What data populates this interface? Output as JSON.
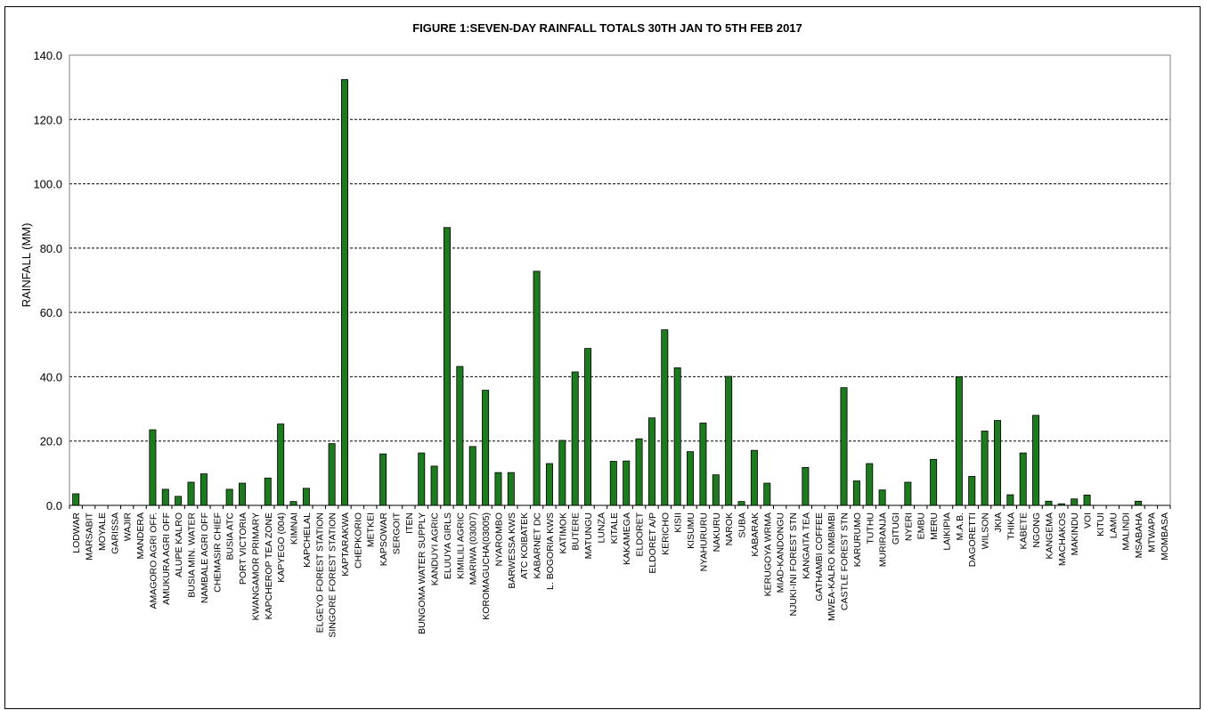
{
  "chart_data": {
    "type": "bar",
    "title": "FIGURE  1:SEVEN-DAY RAINFALL TOTALS 30TH JAN TO 5TH FEB 2017",
    "xlabel": "",
    "ylabel": "RAINFALL (MM)",
    "ylim": [
      0,
      140
    ],
    "yticks": [
      "0.0",
      "20.0",
      "40.0",
      "60.0",
      "80.0",
      "100.0",
      "120.0",
      "140.0"
    ],
    "grid": true,
    "legend": "none",
    "colors": {
      "bar": "#1e7a1e",
      "bar_edge": "#000000",
      "grid": "#000000",
      "axis": "#808080"
    },
    "categories": [
      "LODWAR",
      "MARSABIT",
      "MOYALE",
      "GARISSA",
      "WAJIR",
      "MANDERA",
      "AMAGORO AGRI OFF.",
      "AMUKURA AGRI OFF",
      "ALUPE KALRO",
      "BUSIA MIN. WATER",
      "NAMBALE AGRI OFF",
      "CHEMASIR CHIEF",
      "BUSIA ATC",
      "PORT VICTORIA",
      "KWANGAMOR PRIMARY",
      "KAPCHEROP TEA ZONE",
      "KAPYEGO (004)",
      "KIMNAI",
      "KAPCHELAL",
      "ELGEYO FOREST STATION",
      "SINGORE FOREST STATION",
      "KAPTARAKWA",
      "CHEPKORIO",
      "METKEI",
      "KAPSOWAR",
      "SERGOIT",
      "ITEN",
      "BUNGOMA WATER SUPPLY",
      "KANDUYI AGRIC",
      "ELUUYA GIRLS",
      "KIMILILI AGRIC",
      "MARIWA (03007)",
      "KOROMAGUCHA(03005)",
      "NYAROMBO",
      "BARWESSA KWS",
      "ATC KOIBATEK",
      "KABARNET DC",
      "L. BOGORIA KWS",
      "KATIMOK",
      "BUTERE",
      "MATUNGU",
      "LUNZA",
      "KITALE",
      "KAKAMEGA",
      "ELDORET",
      "ELDORET A/P",
      "KERICHO",
      "KISII",
      "KISUMU",
      "NYAHURURU",
      "NAKURU",
      "NAROK",
      "SUBA",
      "KABARAK",
      "KERUGOYA WRMA",
      "MIAD-KANDONGU",
      "NJUKI-INI FOREST STN",
      "KANGAITA TEA",
      "GATHAMBI COFFEE",
      "MWEA-KALRO KIMBIMBI",
      "CASTLE FOREST STN",
      "KARURUMO",
      "TUTHU",
      "MURIRANJA",
      "GITUGI",
      "NYERI",
      "EMBU",
      "MERU",
      "LAIKIPIA",
      "M.A.B.",
      "DAGORETTI",
      "WILSON",
      "JKIA",
      "THIKA",
      "KABETE",
      "NGONG",
      "KANGEMA",
      "MACHAKOS",
      "MAKINDU",
      "VOI",
      "KITUI",
      "LAMU",
      "MALINDI",
      "MSABAHA",
      "MTWAPA",
      "MOMBASA"
    ],
    "values": [
      3.6,
      0,
      0,
      0,
      0,
      0,
      23.5,
      5.0,
      2.8,
      7.2,
      9.8,
      0,
      5.0,
      6.9,
      0,
      8.5,
      25.3,
      1.2,
      5.3,
      0,
      19.2,
      132.4,
      0,
      0,
      16.0,
      0,
      0,
      16.3,
      12.2,
      86.4,
      43.2,
      18.3,
      35.8,
      10.2,
      10.2,
      0,
      72.8,
      13.0,
      20.2,
      41.5,
      48.8,
      0,
      13.7,
      13.8,
      20.7,
      27.2,
      54.6,
      42.8,
      16.7,
      25.6,
      9.5,
      40.1,
      1.2,
      17.1,
      6.9,
      0,
      0,
      11.8,
      0,
      0,
      36.6,
      7.6,
      13.0,
      4.8,
      0,
      7.2,
      0,
      14.3,
      0,
      40.0,
      9.0,
      23.1,
      26.4,
      3.3,
      16.3,
      28.0,
      1.3,
      0.5,
      2.0,
      3.2,
      0,
      0,
      0,
      1.3,
      0,
      0
    ]
  }
}
